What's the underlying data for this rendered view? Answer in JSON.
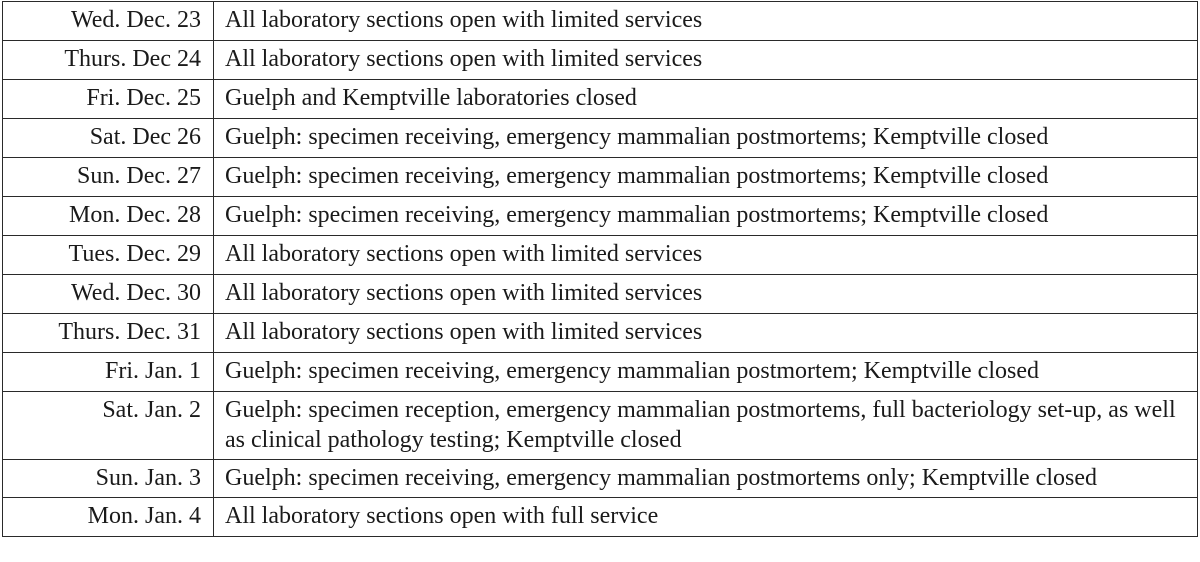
{
  "schedule": {
    "rows": [
      {
        "date": "Wed. Dec. 23",
        "status": "All laboratory sections open with limited services"
      },
      {
        "date": "Thurs. Dec 24",
        "status": "All laboratory sections open with limited services"
      },
      {
        "date": "Fri. Dec. 25",
        "status": "Guelph and Kemptville laboratories closed"
      },
      {
        "date": "Sat. Dec 26",
        "status": "Guelph: specimen receiving, emergency mammalian postmortems; Kemptville closed"
      },
      {
        "date": "Sun. Dec. 27",
        "status": "Guelph: specimen receiving, emergency mammalian postmortems; Kemptville closed"
      },
      {
        "date": "Mon. Dec. 28",
        "status": "Guelph: specimen receiving, emergency mammalian postmortems; Kemptville closed"
      },
      {
        "date": "Tues. Dec. 29",
        "status": "All laboratory sections open with limited services"
      },
      {
        "date": "Wed. Dec. 30",
        "status": "All laboratory sections open with limited services"
      },
      {
        "date": "Thurs. Dec. 31",
        "status": "All laboratory sections open with limited services"
      },
      {
        "date": "Fri. Jan. 1",
        "status": "Guelph: specimen receiving, emergency mammalian postmortem; Kemptville closed"
      },
      {
        "date": "Sat. Jan. 2",
        "status": "Guelph: specimen reception, emergency mammalian postmortems, full bacteriology set-up, as well as clinical pathology testing; Kemptville closed"
      },
      {
        "date": "Sun. Jan. 3",
        "status": "Guelph: specimen receiving, emergency mammalian postmortems only; Kemptville closed"
      },
      {
        "date": "Mon. Jan. 4",
        "status": "All laboratory sections open with full service"
      }
    ]
  }
}
